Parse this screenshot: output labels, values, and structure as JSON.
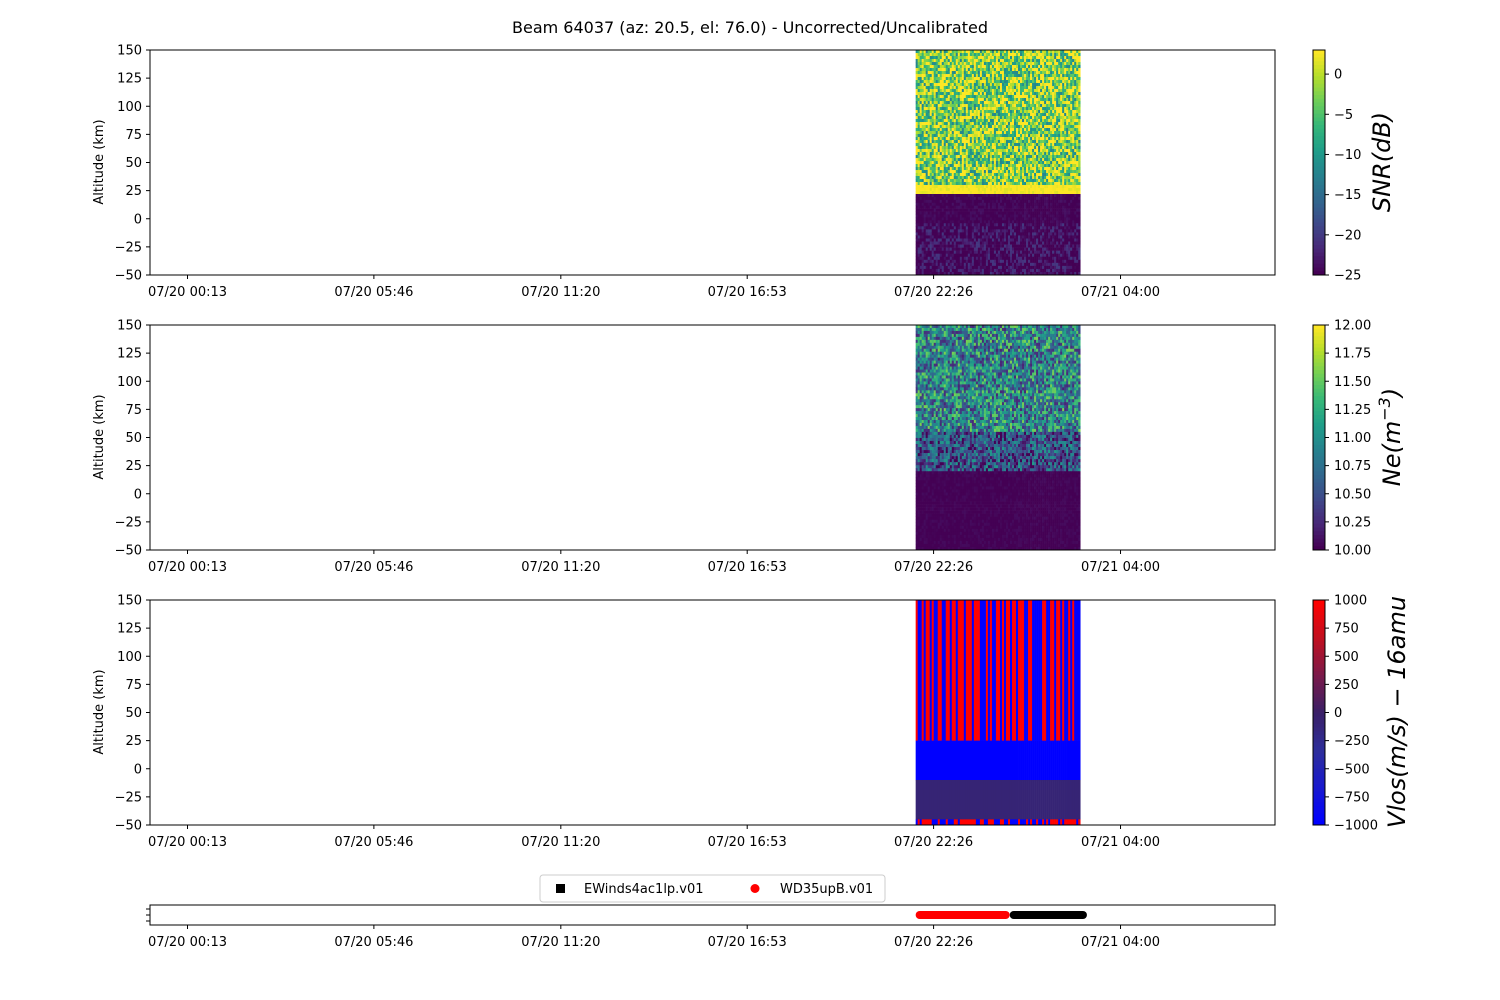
{
  "title": "Beam 64037 (az: 20.5, el: 76.0) - Uncorrected/Uncalibrated",
  "colors": {
    "viridis": [
      "#440154",
      "#482878",
      "#3e4989",
      "#31688e",
      "#26828e",
      "#1f9e89",
      "#35b779",
      "#6ece58",
      "#b5de2b",
      "#fde725"
    ],
    "bwr_custom": [
      "#0000ff",
      "#1a1acc",
      "#2e2e99",
      "#3a1f66",
      "#7a1a4a",
      "#c01020",
      "#ff0000"
    ],
    "legend_black": "#000000",
    "legend_red": "#ff0000"
  },
  "chart_data": [
    {
      "type": "heatmap",
      "name": "SNR",
      "ylabel": "Altitude (km)",
      "ylim": [
        -50,
        150
      ],
      "yticks": [
        150,
        125,
        100,
        75,
        50,
        25,
        0,
        -25,
        -50
      ],
      "xticklabels": [
        "07/20 00:13",
        "07/20 05:46",
        "07/20 11:20",
        "07/20 16:53",
        "07/20 22:26",
        "07/21 04:00"
      ],
      "data_x_range_hours": [
        21.9,
        26.8
      ],
      "colorbar": {
        "label": "SNR(dB)",
        "clim": [
          -25,
          3
        ],
        "ticks": [
          0,
          -5,
          -10,
          -15,
          -20,
          -25
        ],
        "colormap": "viridis"
      },
      "bands": [
        {
          "alt": [
            30,
            150
          ],
          "level": 0.8,
          "noise": 0.35
        },
        {
          "alt": [
            22,
            30
          ],
          "level": 1.0,
          "noise": 0.05
        },
        {
          "alt": [
            -4,
            22
          ],
          "level": 0.0,
          "noise": 0.05
        },
        {
          "alt": [
            -50,
            -4
          ],
          "level": 0.02,
          "noise": 0.15
        }
      ]
    },
    {
      "type": "heatmap",
      "name": "Ne",
      "ylabel": "Altitude (km)",
      "ylim": [
        -50,
        150
      ],
      "yticks": [
        150,
        125,
        100,
        75,
        50,
        25,
        0,
        -25,
        -50
      ],
      "xticklabels": [
        "07/20 00:13",
        "07/20 05:46",
        "07/20 11:20",
        "07/20 16:53",
        "07/20 22:26",
        "07/21 04:00"
      ],
      "data_x_range_hours": [
        21.9,
        26.8
      ],
      "colorbar": {
        "label": "Ne(m^-3)",
        "clim": [
          10.0,
          12.0
        ],
        "ticks": [
          12.0,
          11.75,
          11.5,
          11.25,
          11.0,
          10.75,
          10.5,
          10.25,
          10.0
        ],
        "colormap": "viridis"
      },
      "bands": [
        {
          "alt": [
            55,
            150
          ],
          "level": 0.45,
          "noise": 0.35
        },
        {
          "alt": [
            20,
            55
          ],
          "level": 0.25,
          "noise": 0.3
        },
        {
          "alt": [
            -50,
            20
          ],
          "level": 0.0,
          "noise": 0.03
        }
      ]
    },
    {
      "type": "heatmap",
      "name": "Vlos",
      "ylabel": "Altitude (km)",
      "ylim": [
        -50,
        150
      ],
      "yticks": [
        150,
        125,
        100,
        75,
        50,
        25,
        0,
        -25,
        -50
      ],
      "xticklabels": [
        "07/20 00:13",
        "07/20 05:46",
        "07/20 11:20",
        "07/20 16:53",
        "07/20 22:26",
        "07/21 04:00"
      ],
      "data_x_range_hours": [
        21.9,
        26.8
      ],
      "colorbar": {
        "label": "Vlos(m/s) - 16amu",
        "clim": [
          -1000,
          1000
        ],
        "ticks": [
          1000,
          750,
          500,
          250,
          0,
          -250,
          -500,
          -750,
          -1000
        ],
        "colormap": "bwr"
      },
      "bands": [
        {
          "alt": [
            25,
            150
          ],
          "level": 0.5,
          "noise": 1.0
        },
        {
          "alt": [
            -10,
            25
          ],
          "level": 0.0,
          "noise": 0.02
        },
        {
          "alt": [
            -45,
            -10
          ],
          "level": 0.45,
          "noise": 0.05
        },
        {
          "alt": [
            -50,
            -45
          ],
          "level": 0.5,
          "noise": 1.0
        }
      ]
    },
    {
      "type": "scatter",
      "name": "modes",
      "xticklabels": [
        "07/20 00:13",
        "07/20 05:46",
        "07/20 11:20",
        "07/20 16:53",
        "07/20 22:26",
        "07/21 04:00"
      ],
      "legend": [
        "EWinds4ac1lp.v01",
        "WD35upB.v01"
      ],
      "series": [
        {
          "name": "EWinds4ac1lp.v01",
          "x_hours": [
            24.7,
            27.0
          ]
        },
        {
          "name": "WD35upB.v01",
          "x_hours": [
            21.9,
            24.7
          ]
        }
      ]
    }
  ]
}
